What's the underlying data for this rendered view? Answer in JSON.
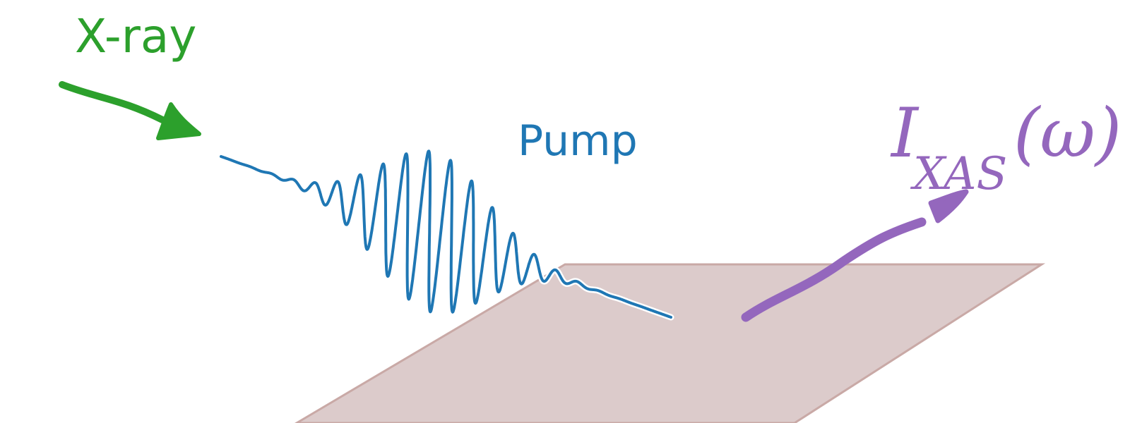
{
  "labels": {
    "xray": "X-ray",
    "pump": "Pump",
    "ixas_main": "I",
    "ixas_sub": "XAS",
    "ixas_arg": "(ω)"
  },
  "colors": {
    "xray": "#2ca02c",
    "pump": "#1f77b4",
    "signal": "#9467bd",
    "sample_fill": "#dccbcb",
    "sample_edge": "#c9a9a6"
  },
  "icons": {
    "xray_beam": "arrow-right-down",
    "pump_pulse": "wave-packet",
    "signal_beam": "arrow-right-up",
    "sample": "parallelogram-plane"
  }
}
